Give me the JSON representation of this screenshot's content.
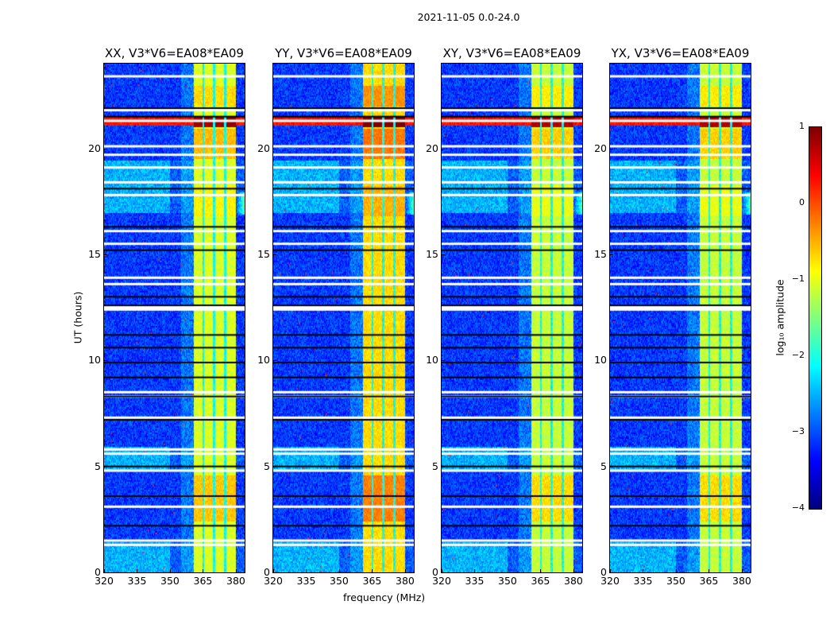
{
  "chart_data": {
    "type": "heatmap",
    "title": "2021-11-05 0.0-24.0",
    "xlabel": "frequency (MHz)",
    "ylabel": "UT (hours)",
    "xlim": [
      320,
      384
    ],
    "ylim": [
      0,
      24
    ],
    "xticks": [
      "320",
      "335",
      "350",
      "365",
      "380"
    ],
    "yticks": [
      "0",
      "5",
      "10",
      "15",
      "20"
    ],
    "panels": [
      {
        "title": "XX, V3*V6=EA08*EA09",
        "band_boost": 0.0
      },
      {
        "title": "YY, V3*V6=EA08*EA09",
        "band_boost": 0.35
      },
      {
        "title": "XY, V3*V6=EA08*EA09",
        "band_boost": -0.1
      },
      {
        "title": "YX, V3*V6=EA08*EA09",
        "band_boost": -0.1
      }
    ],
    "bright_band_mhz": [
      360.5,
      380
    ],
    "band_gaps_mhz": [
      365,
      370,
      375
    ],
    "flagged_white_hours": [
      23.4,
      21.8,
      21.3,
      20.1,
      19.7,
      19.1,
      18.4,
      17.8,
      16.1,
      15.5,
      13.9,
      13.6,
      12.5,
      12.4,
      8.5,
      8.3,
      7.3,
      5.8,
      5.6,
      4.8,
      3.1,
      1.5,
      1.3
    ],
    "flagged_black_hours": [
      21.9,
      21.5,
      18.1,
      16.3,
      15.2,
      13.0,
      12.6,
      11.2,
      10.6,
      9.9,
      9.2,
      8.3,
      7.2,
      5.0,
      3.6,
      2.2
    ],
    "colorbar": {
      "label": "log₁₀ amplitude",
      "colormap": "jet",
      "range": [
        -4,
        1
      ],
      "ticks": [
        "1",
        "0",
        "−1",
        "−2",
        "−3",
        "−4"
      ]
    }
  }
}
